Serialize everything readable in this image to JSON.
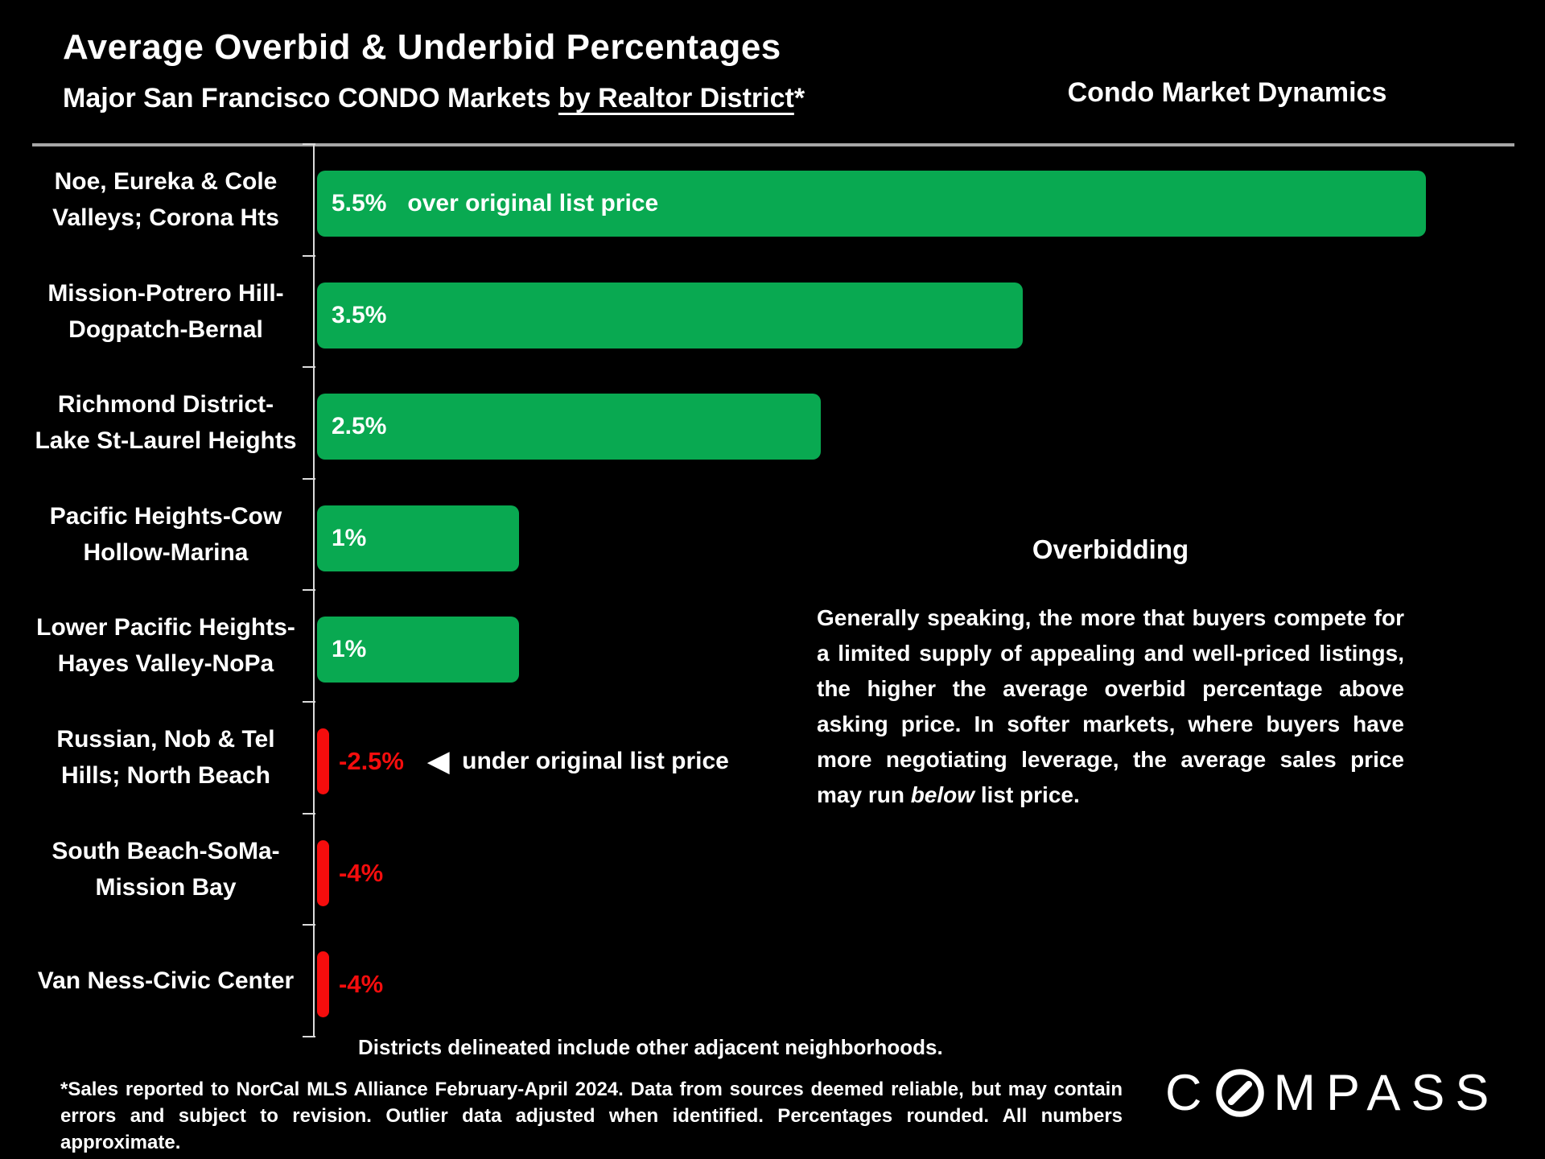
{
  "header": {
    "title": "Average Overbid & Underbid Percentages",
    "subtitle_prefix": "Major San Francisco CONDO Markets ",
    "subtitle_underline": "by Realtor District",
    "subtitle_suffix": "*",
    "right_title": "Condo Market Dynamics"
  },
  "chart_data": {
    "type": "bar",
    "orientation": "horizontal",
    "title": "Average Overbid & Underbid Percentages",
    "subtitle": "Major San Francisco CONDO Markets by Realtor District*",
    "unit": "percent over/under original list price",
    "categories": [
      "Noe, Eureka & Cole Valleys; Corona Hts",
      "Mission-Potrero Hill-Dogpatch-Bernal",
      "Richmond District-Lake St-Laurel Heights",
      "Pacific Heights-Cow Hollow-Marina",
      "Lower Pacific Heights-Hayes Valley-NoPa",
      "Russian, Nob & Tel Hills; North Beach",
      "South Beach-SoMa-Mission Bay",
      "Van Ness-Civic Center"
    ],
    "category_lines": [
      [
        "Noe, Eureka & Cole",
        "Valleys; Corona Hts"
      ],
      [
        "Mission-Potrero Hill-",
        "Dogpatch-Bernal"
      ],
      [
        "Richmond District-",
        "Lake St-Laurel Heights"
      ],
      [
        "Pacific Heights-Cow",
        "Hollow-Marina"
      ],
      [
        "Lower Pacific Heights-",
        "Hayes Valley-NoPa"
      ],
      [
        "Russian, Nob & Tel",
        "Hills; North Beach"
      ],
      [
        "South Beach-SoMa-",
        "Mission Bay"
      ],
      [
        "Van Ness-Civic Center"
      ]
    ],
    "values": [
      5.5,
      3.5,
      2.5,
      1,
      1,
      -2.5,
      -4,
      -4
    ],
    "bar_labels": [
      "5.5%",
      "3.5%",
      "2.5%",
      "1%",
      "1%",
      "-2.5%",
      "-4%",
      "-4%"
    ],
    "positive_annotation": "over original list price",
    "positive_annotation_row": 0,
    "negative_annotation": "under original list price",
    "negative_annotation_row": 5,
    "under_arrow_glyph": "◀",
    "xlim": [
      0,
      5.5
    ],
    "grid": false,
    "legend": false,
    "colors": {
      "positive": "#09a951",
      "negative": "#f50d0d",
      "axis": "#dcdcdc"
    }
  },
  "side_panel": {
    "heading": "Overbidding",
    "paragraph_start": "Generally speaking, the more that buyers compete for a limited supply of appealing and well-priced listings, the higher the average overbid percentage above asking price. In softer markets, where buyers have more negotiating leverage, the average sales price may run ",
    "paragraph_italic": "below",
    "paragraph_end": " list price."
  },
  "notes": {
    "districts_note": "Districts delineated include other adjacent neighborhoods.",
    "footnote_line1": "*Sales reported to NorCal MLS Alliance February-April 2024. Data from sources deemed reliable, but may contain",
    "footnote_line2": "errors and subject to revision. Outlier data adjusted when identified. Percentages rounded. All numbers approximate."
  },
  "logo": {
    "name": "COMPASS",
    "prefix": "C",
    "suffix": "MPASS"
  }
}
